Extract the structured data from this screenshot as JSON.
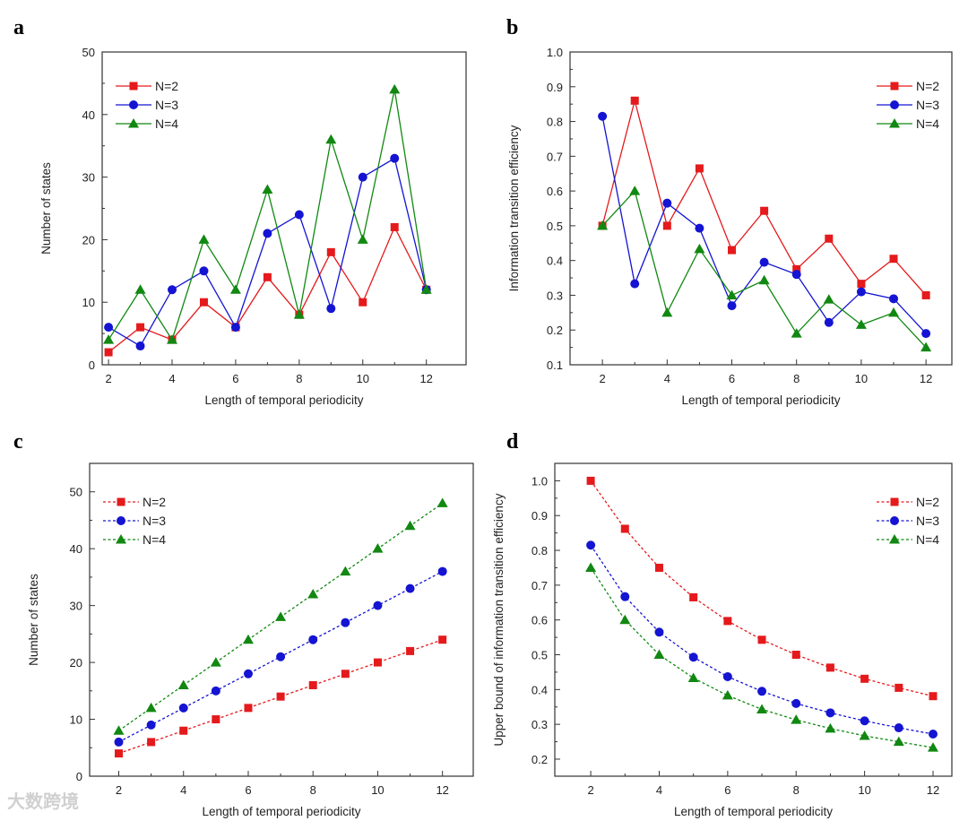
{
  "watermark": "大数跨境",
  "chart_data": [
    {
      "panel": "a",
      "type": "line",
      "line_style": "solid",
      "title": "",
      "xlabel": "Length of temporal periodicity",
      "ylabel": "Number of states",
      "x": [
        2,
        3,
        4,
        5,
        6,
        7,
        8,
        9,
        10,
        11,
        12
      ],
      "xlim": [
        1.8,
        13.25
      ],
      "ylim": [
        0,
        50
      ],
      "xticks": [
        2,
        4,
        6,
        8,
        10,
        12
      ],
      "xtick_labels": [
        "2",
        "4",
        "6",
        "8",
        "10",
        "12"
      ],
      "yticks": [
        0,
        10,
        20,
        30,
        40,
        50
      ],
      "ytick_labels": [
        "0",
        "10",
        "20",
        "30",
        "40",
        "50"
      ],
      "legend": "top-left",
      "series": [
        {
          "name": "N=2",
          "color": "#e41a1c",
          "marker": "square",
          "values": [
            2,
            6,
            4,
            10,
            6,
            14,
            8,
            18,
            10,
            22,
            12
          ]
        },
        {
          "name": "N=3",
          "color": "#1414d2",
          "marker": "circle",
          "values": [
            6,
            3,
            12,
            15,
            6,
            21,
            24,
            9,
            30,
            33,
            12
          ]
        },
        {
          "name": "N=4",
          "color": "#118811",
          "marker": "triangle",
          "values": [
            4,
            12,
            4,
            20,
            12,
            28,
            8,
            36,
            20,
            44,
            12
          ]
        }
      ]
    },
    {
      "panel": "b",
      "type": "line",
      "line_style": "solid",
      "title": "",
      "xlabel": "Length of temporal periodicity",
      "ylabel": "Information transition efficiency",
      "x": [
        2,
        3,
        4,
        5,
        6,
        7,
        8,
        9,
        10,
        11,
        12
      ],
      "xlim": [
        1.0,
        12.8
      ],
      "ylim": [
        0.1,
        1.0
      ],
      "xticks": [
        2,
        4,
        6,
        8,
        10,
        12
      ],
      "xtick_labels": [
        "2",
        "4",
        "6",
        "8",
        "10",
        "12"
      ],
      "yticks": [
        0.1,
        0.2,
        0.3,
        0.4,
        0.5,
        0.6,
        0.7,
        0.8,
        0.9,
        1.0
      ],
      "ytick_labels": [
        "0.1",
        "0.2",
        "0.3",
        "0.4",
        "0.5",
        "0.6",
        "0.7",
        "0.8",
        "0.9",
        "1.0"
      ],
      "legend": "top-right",
      "series": [
        {
          "name": "N=2",
          "color": "#e41a1c",
          "marker": "square",
          "values": [
            0.5,
            0.86,
            0.5,
            0.665,
            0.43,
            0.543,
            0.375,
            0.463,
            0.333,
            0.405,
            0.3
          ]
        },
        {
          "name": "N=3",
          "color": "#1414d2",
          "marker": "circle",
          "values": [
            0.815,
            0.333,
            0.565,
            0.493,
            0.27,
            0.395,
            0.36,
            0.222,
            0.31,
            0.29,
            0.19
          ]
        },
        {
          "name": "N=4",
          "color": "#118811",
          "marker": "triangle",
          "values": [
            0.5,
            0.6,
            0.25,
            0.433,
            0.3,
            0.343,
            0.19,
            0.288,
            0.215,
            0.25,
            0.15
          ]
        }
      ]
    },
    {
      "panel": "c",
      "type": "line",
      "line_style": "dotted",
      "title": "",
      "xlabel": "Length of temporal periodicity",
      "ylabel": "Number of states",
      "x": [
        2,
        3,
        4,
        5,
        6,
        7,
        8,
        9,
        10,
        11,
        12
      ],
      "xlim": [
        1.1,
        12.95
      ],
      "ylim": [
        0,
        55
      ],
      "xticks": [
        2,
        4,
        6,
        8,
        10,
        12
      ],
      "xtick_labels": [
        "2",
        "4",
        "6",
        "8",
        "10",
        "12"
      ],
      "yticks": [
        0,
        10,
        20,
        30,
        40,
        50
      ],
      "ytick_labels": [
        "0",
        "10",
        "20",
        "30",
        "40",
        "50"
      ],
      "legend": "top-left",
      "series": [
        {
          "name": "N=2",
          "color": "#e41a1c",
          "marker": "square",
          "values": [
            4,
            6,
            8,
            10,
            12,
            14,
            16,
            18,
            20,
            22,
            24
          ]
        },
        {
          "name": "N=3",
          "color": "#1414d2",
          "marker": "circle",
          "values": [
            6,
            9,
            12,
            15,
            18,
            21,
            24,
            27,
            30,
            33,
            36
          ]
        },
        {
          "name": "N=4",
          "color": "#118811",
          "marker": "triangle",
          "values": [
            8,
            12,
            16,
            20,
            24,
            28,
            32,
            36,
            40,
            44,
            48
          ]
        }
      ]
    },
    {
      "panel": "d",
      "type": "line",
      "line_style": "dotted",
      "title": "",
      "xlabel": "Length of temporal periodicity",
      "ylabel": "Upper bound of information transition efficiency",
      "x": [
        2,
        3,
        4,
        5,
        6,
        7,
        8,
        9,
        10,
        11,
        12
      ],
      "xlim": [
        0.95,
        12.55
      ],
      "ylim": [
        0.151,
        1.05
      ],
      "xticks": [
        2,
        4,
        6,
        8,
        10,
        12
      ],
      "xtick_labels": [
        "2",
        "4",
        "6",
        "8",
        "10",
        "12"
      ],
      "yticks": [
        0.2,
        0.3,
        0.4,
        0.5,
        0.6,
        0.7,
        0.8,
        0.9,
        1.0
      ],
      "ytick_labels": [
        "0.2",
        "0.3",
        "0.4",
        "0.5",
        "0.6",
        "0.7",
        "0.8",
        "0.9",
        "1.0"
      ],
      "legend": "top-right",
      "series": [
        {
          "name": "N=2",
          "color": "#e41a1c",
          "marker": "square",
          "values": [
            1.0,
            0.862,
            0.75,
            0.665,
            0.597,
            0.543,
            0.5,
            0.463,
            0.431,
            0.405,
            0.381
          ]
        },
        {
          "name": "N=3",
          "color": "#1414d2",
          "marker": "circle",
          "values": [
            0.815,
            0.667,
            0.565,
            0.493,
            0.437,
            0.395,
            0.36,
            0.333,
            0.31,
            0.29,
            0.272
          ]
        },
        {
          "name": "N=4",
          "color": "#118811",
          "marker": "triangle",
          "values": [
            0.75,
            0.6,
            0.5,
            0.433,
            0.383,
            0.343,
            0.313,
            0.288,
            0.267,
            0.25,
            0.233
          ]
        }
      ]
    }
  ]
}
